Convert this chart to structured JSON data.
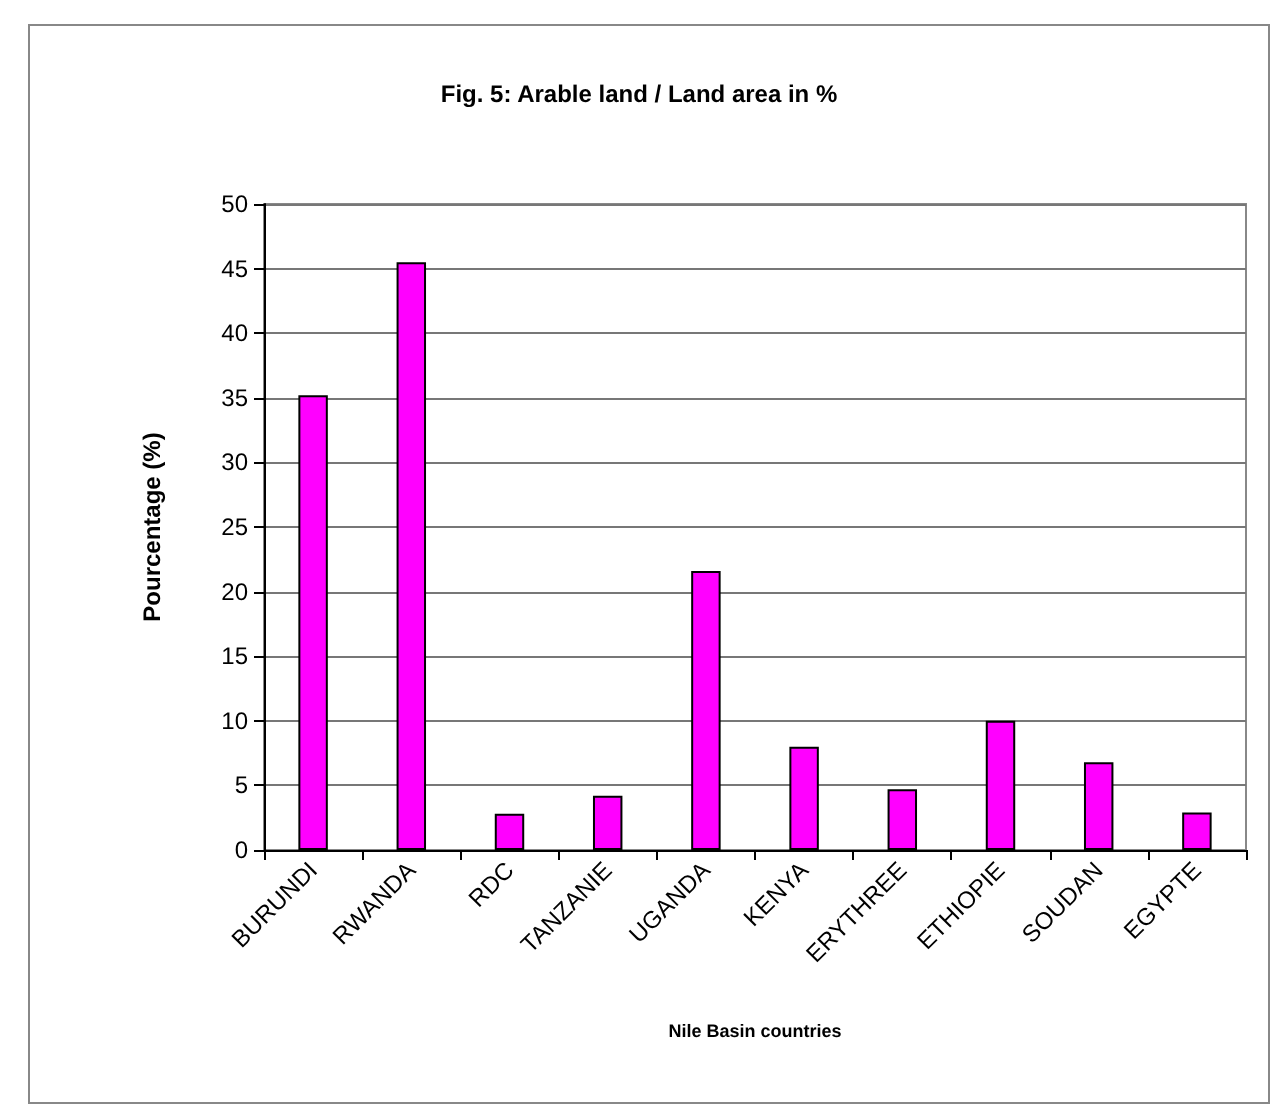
{
  "chart_data": {
    "type": "bar",
    "title": "Fig. 5: Arable land / Land area in %",
    "xlabel": "Nile Basin countries",
    "ylabel": "Pourcentage (%)",
    "categories": [
      "BURUNDI",
      "RWANDA",
      "RDC",
      "TANZANIE",
      "UGANDA",
      "KENYA",
      "ERYTHREE",
      "ETHIOPIE",
      "SOUDAN",
      "EGYPTE"
    ],
    "values": [
      35.2,
      45.5,
      2.8,
      4.2,
      21.6,
      8.0,
      4.7,
      10.0,
      6.8,
      2.9
    ],
    "color": "#ff00ff",
    "ylim": [
      0,
      50
    ],
    "yticks": [
      0,
      5,
      10,
      15,
      20,
      25,
      30,
      35,
      40,
      45,
      50
    ],
    "grid": "y"
  }
}
